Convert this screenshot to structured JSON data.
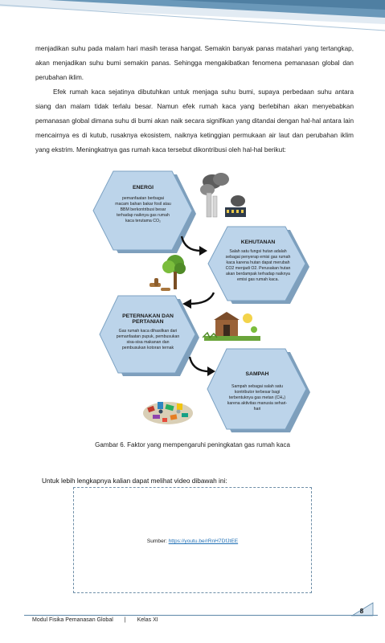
{
  "paragraphs": [
    "menjadikan suhu pada malam hari masih terasa hangat. Semakin banyak panas matahari yang tertangkap, akan menjadikan suhu bumi semakin panas. Sehingga mengakibatkan fenomena pemanasan global dan perubahan iklim.",
    "Efek rumah kaca sejatinya dibutuhkan untuk menjaga suhu bumi, supaya perbedaan suhu antara siang dan malam tidak terlalu besar. Namun efek rumah kaca yang berlebihan akan menyebabkan pemanasan global dimana suhu di bumi akan naik secara signifikan yang ditandai dengan hal-hal antara lain mencairnya es di kutub, rusaknya ekosistem, naiknya ketinggian permukaan air laut dan perubahan iklim yang ekstrim. Meningkatnya gas rumah kaca tersebut dikontribusi oleh hal-hal berikut:"
  ],
  "figure": {
    "energi": {
      "title": "ENERGI",
      "body": "pemanfaatan berbagai macam bahan bakar fosil atau BBM berkontribusi besar terhadap naiknya gas rumah kaca terutama CO₂"
    },
    "kehutanan": {
      "title": "KEHUTANAN",
      "body": "Salah satu fungsi hutan adalah sebagai penyerap emisi gas rumah kaca karena hutan dapat merubah CO2 menjadi O2. Perusakan hutan akan berdampak terhadap naiknya emisi gas rumah kaca."
    },
    "peternakan": {
      "title": "PETERNAKAN DAN PERTANIAN",
      "body": "Gas rumah kaca dihasilkan dari pemanfaatan pupuk, pembusukan sisa-sisa makanan dan pembusukan kotoran ternak"
    },
    "sampah": {
      "title": "SAMPAH",
      "body": "Sampah sebagai salah satu kontributor terbesar bagi terbentuknya gas metan (CH₄) karena aktivitas manusia sehari-hari"
    },
    "caption": "Gambar 6. Faktor yang mempengaruhi peningkatan gas rumah kaca"
  },
  "video": {
    "intro": "Untuk lebih lengkapnya kalian dapat melihat video dibawah ini:",
    "source_label": "Sumber:",
    "source_link": "https://youtu.be/rRnH7DfJtEE"
  },
  "footer": {
    "module": "Modul Fisika Pemanasan Global",
    "separator": "|",
    "class": "Kelas XI",
    "page": "8"
  },
  "colors": {
    "header_band": "#6a98b9",
    "hex_fill": "#bcd4ea",
    "hex_outline": "#7ca2c3",
    "hex_shadow": "#7e9fbc"
  },
  "icons": [
    "factory-icon",
    "tree-icon",
    "farm-icon",
    "waste-icon"
  ]
}
